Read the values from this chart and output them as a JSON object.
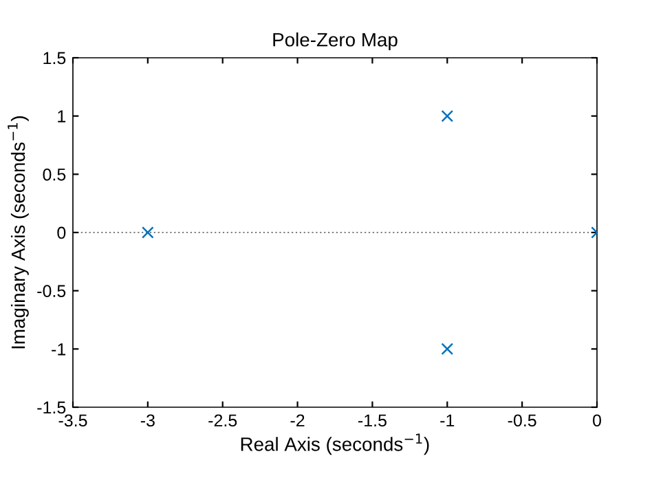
{
  "chart_data": {
    "type": "scatter",
    "title": "Pole-Zero Map",
    "xlabel": "Real Axis (seconds$^{−1}$)",
    "ylabel": "Imaginary Axis (seconds$^{−1}$)",
    "x": [
      -3,
      -1,
      -1,
      0
    ],
    "series": [
      {
        "color": "#0072bd",
        "values": [
          0,
          1,
          -1,
          0
        ]
      }
    ],
    "marker": "cross",
    "xlim": [
      -3.5,
      0
    ],
    "xticks": [
      -3.5,
      -3,
      -2.5,
      -2,
      -1.5,
      -1,
      -0.5,
      0
    ],
    "ylim": [
      -1.5,
      1.5
    ],
    "yticks": [
      -1.5,
      -1,
      -0.5,
      0,
      0.5,
      1,
      1.5
    ],
    "ref_lines": [
      {
        "axis": "y",
        "value": 0,
        "color": "#808080",
        "line_style": "dotted"
      }
    ],
    "grid": false,
    "legend": false
  }
}
